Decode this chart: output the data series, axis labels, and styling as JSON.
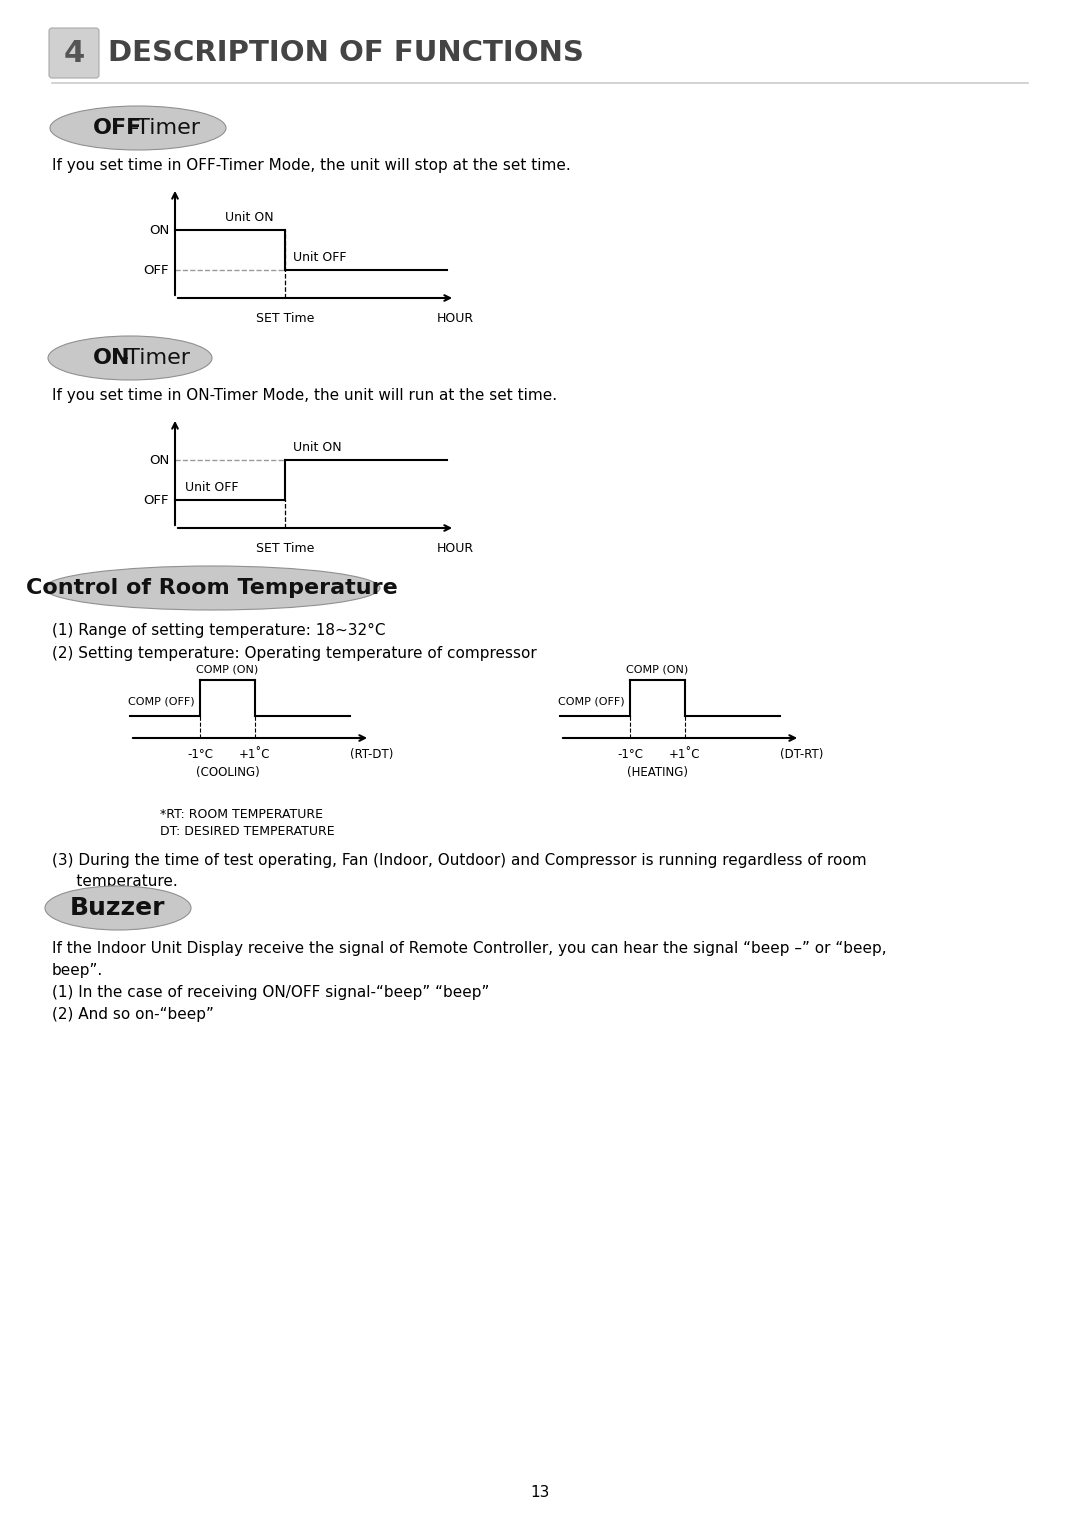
{
  "page_title_number": "4",
  "page_title_text": "DESCRIPTION OF FUNCTIONS",
  "section1_title_bold": "OFF",
  "section1_title_normal": "-Timer",
  "section1_desc": "If you set time in OFF-Timer Mode, the unit will stop at the set time.",
  "section2_title_bold": "ON",
  "section2_title_normal": "-Timer",
  "section2_desc": "If you set time in ON-Timer Mode, the unit will run at the set time.",
  "section3_title": "Control of Room Temperature",
  "section3_desc1": "(1) Range of setting temperature: 18~32°C",
  "section3_desc2": "(2) Setting temperature: Operating temperature of compressor",
  "section3_desc3": "(3) During the time of test operating, Fan (Indoor, Outdoor) and Compressor is running regardless of room\n     temperature.",
  "section3_note1": "*RT: ROOM TEMPERATURE",
  "section3_note2": "DT: DESIRED TEMPERATURE",
  "section4_title": "Buzzer",
  "section4_line1": "If the Indoor Unit Display receive the signal of Remote Controller, you can hear the signal “beep –” or “beep,",
  "section4_line2": "beep”.",
  "section4_line3": "(1) In the case of receiving ON/OFF signal-“beep” “beep”",
  "section4_line4": "(2) And so on-“beep”",
  "page_number": "13",
  "bg_color": "#ffffff"
}
